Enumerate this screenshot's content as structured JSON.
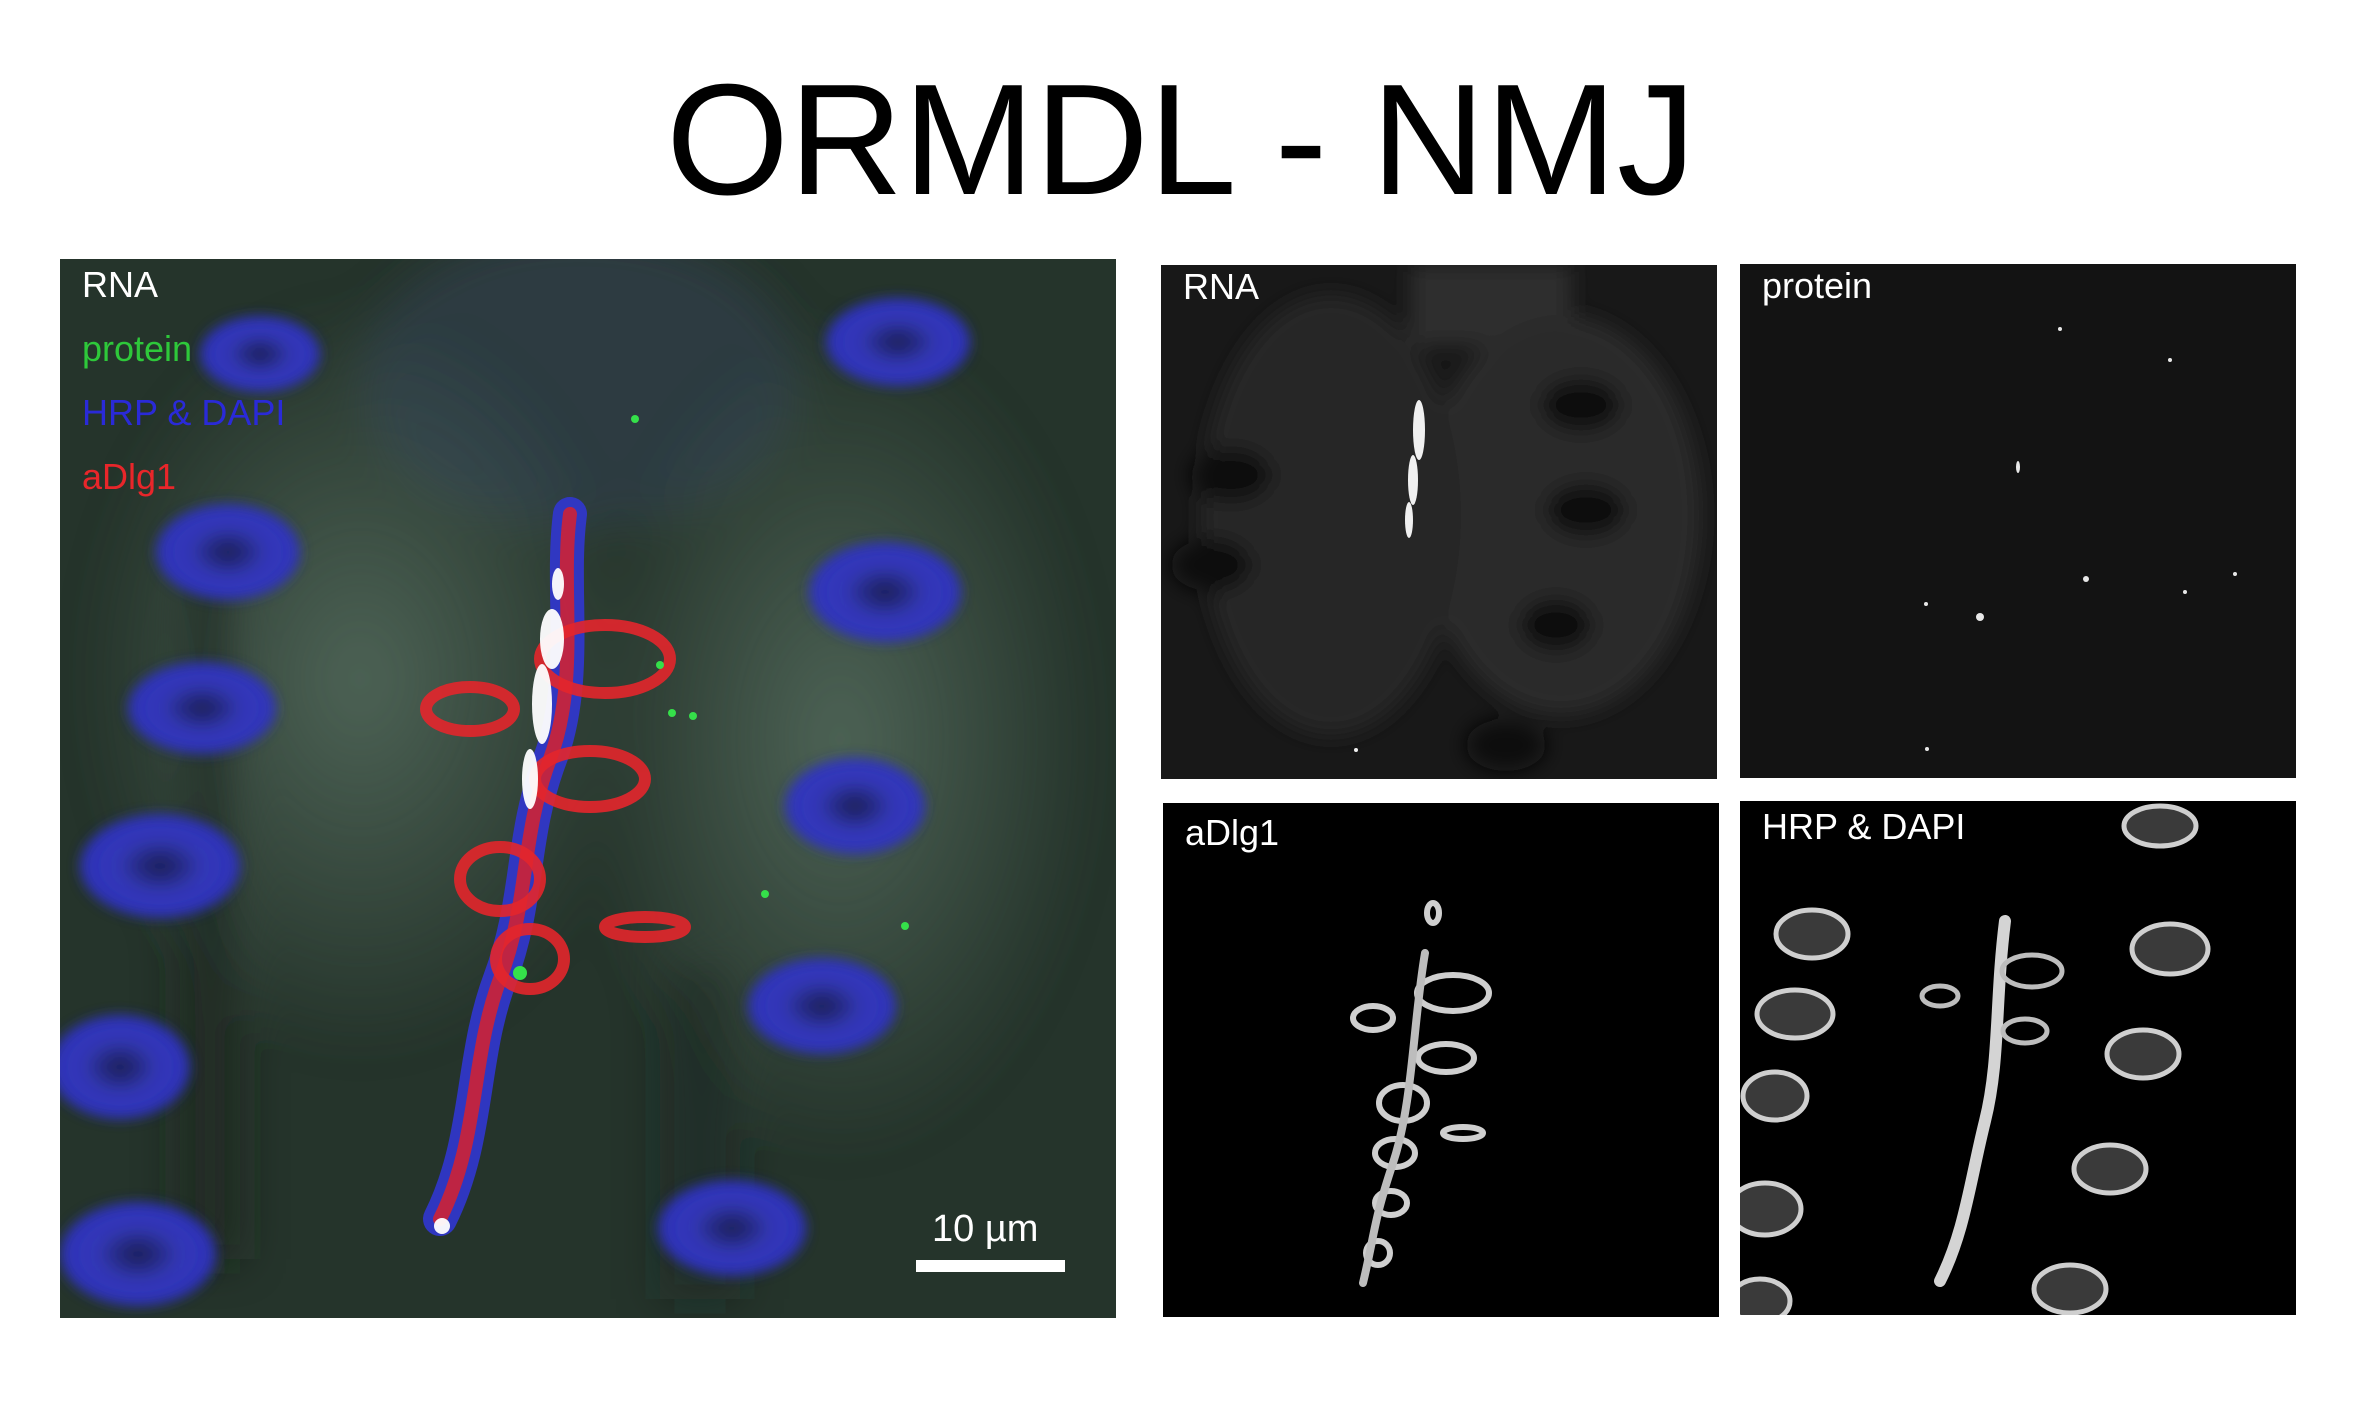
{
  "title": "ORMDL - NMJ",
  "main_panel": {
    "legend": [
      {
        "label": "RNA",
        "color": "#ffffff"
      },
      {
        "label": "protein",
        "color": "#2ec83a"
      },
      {
        "label": "HRP & DAPI",
        "color": "#2a2ad8"
      },
      {
        "label": "aDlg1",
        "color": "#e8262a"
      }
    ],
    "scale_bar_label": "10 µm"
  },
  "channel_panels": [
    {
      "label": "RNA",
      "label_color": "#ffffff"
    },
    {
      "label": "protein",
      "label_color": "#ffffff"
    },
    {
      "label": "aDlg1",
      "label_color": "#ffffff"
    },
    {
      "label": "HRP & DAPI",
      "label_color": "#ffffff"
    }
  ]
}
